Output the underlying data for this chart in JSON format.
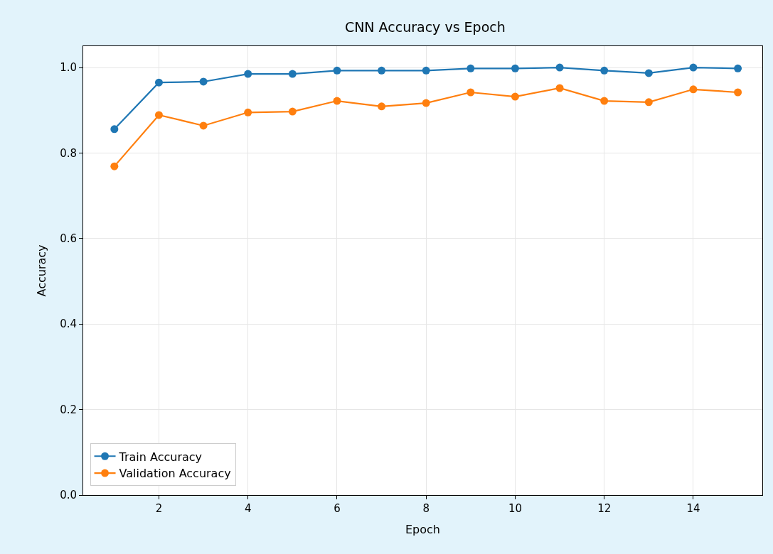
{
  "chart_data": {
    "type": "line",
    "title": "CNN Accuracy vs Epoch",
    "xlabel": "Epoch",
    "ylabel": "Accuracy",
    "x": [
      1,
      2,
      3,
      4,
      5,
      6,
      7,
      8,
      9,
      10,
      11,
      12,
      13,
      14,
      15
    ],
    "series": [
      {
        "name": "Train Accuracy",
        "color": "#1f77b4",
        "values": [
          0.856,
          0.965,
          0.967,
          0.985,
          0.985,
          0.993,
          0.993,
          0.993,
          0.998,
          0.998,
          1.0,
          0.993,
          0.987,
          1.0,
          0.998
        ]
      },
      {
        "name": "Validation Accuracy",
        "color": "#ff7f0e",
        "values": [
          0.769,
          0.889,
          0.864,
          0.895,
          0.897,
          0.922,
          0.909,
          0.917,
          0.942,
          0.932,
          0.952,
          0.922,
          0.919,
          0.949,
          0.942
        ]
      }
    ],
    "xlim": [
      0.3,
      15.55
    ],
    "ylim": [
      0,
      1.05
    ],
    "xticks": [
      2,
      4,
      6,
      8,
      10,
      12,
      14
    ],
    "yticks": [
      {
        "value": 0,
        "label": "0.0"
      },
      {
        "value": 0.2,
        "label": "0.2"
      },
      {
        "value": 0.4,
        "label": "0.4"
      },
      {
        "value": 0.6,
        "label": "0.6"
      },
      {
        "value": 0.8,
        "label": "0.8"
      },
      {
        "value": 1.0,
        "label": "1.0"
      }
    ],
    "grid": true,
    "legend": "bottom left",
    "marker": "circle",
    "line_style": "solid"
  }
}
